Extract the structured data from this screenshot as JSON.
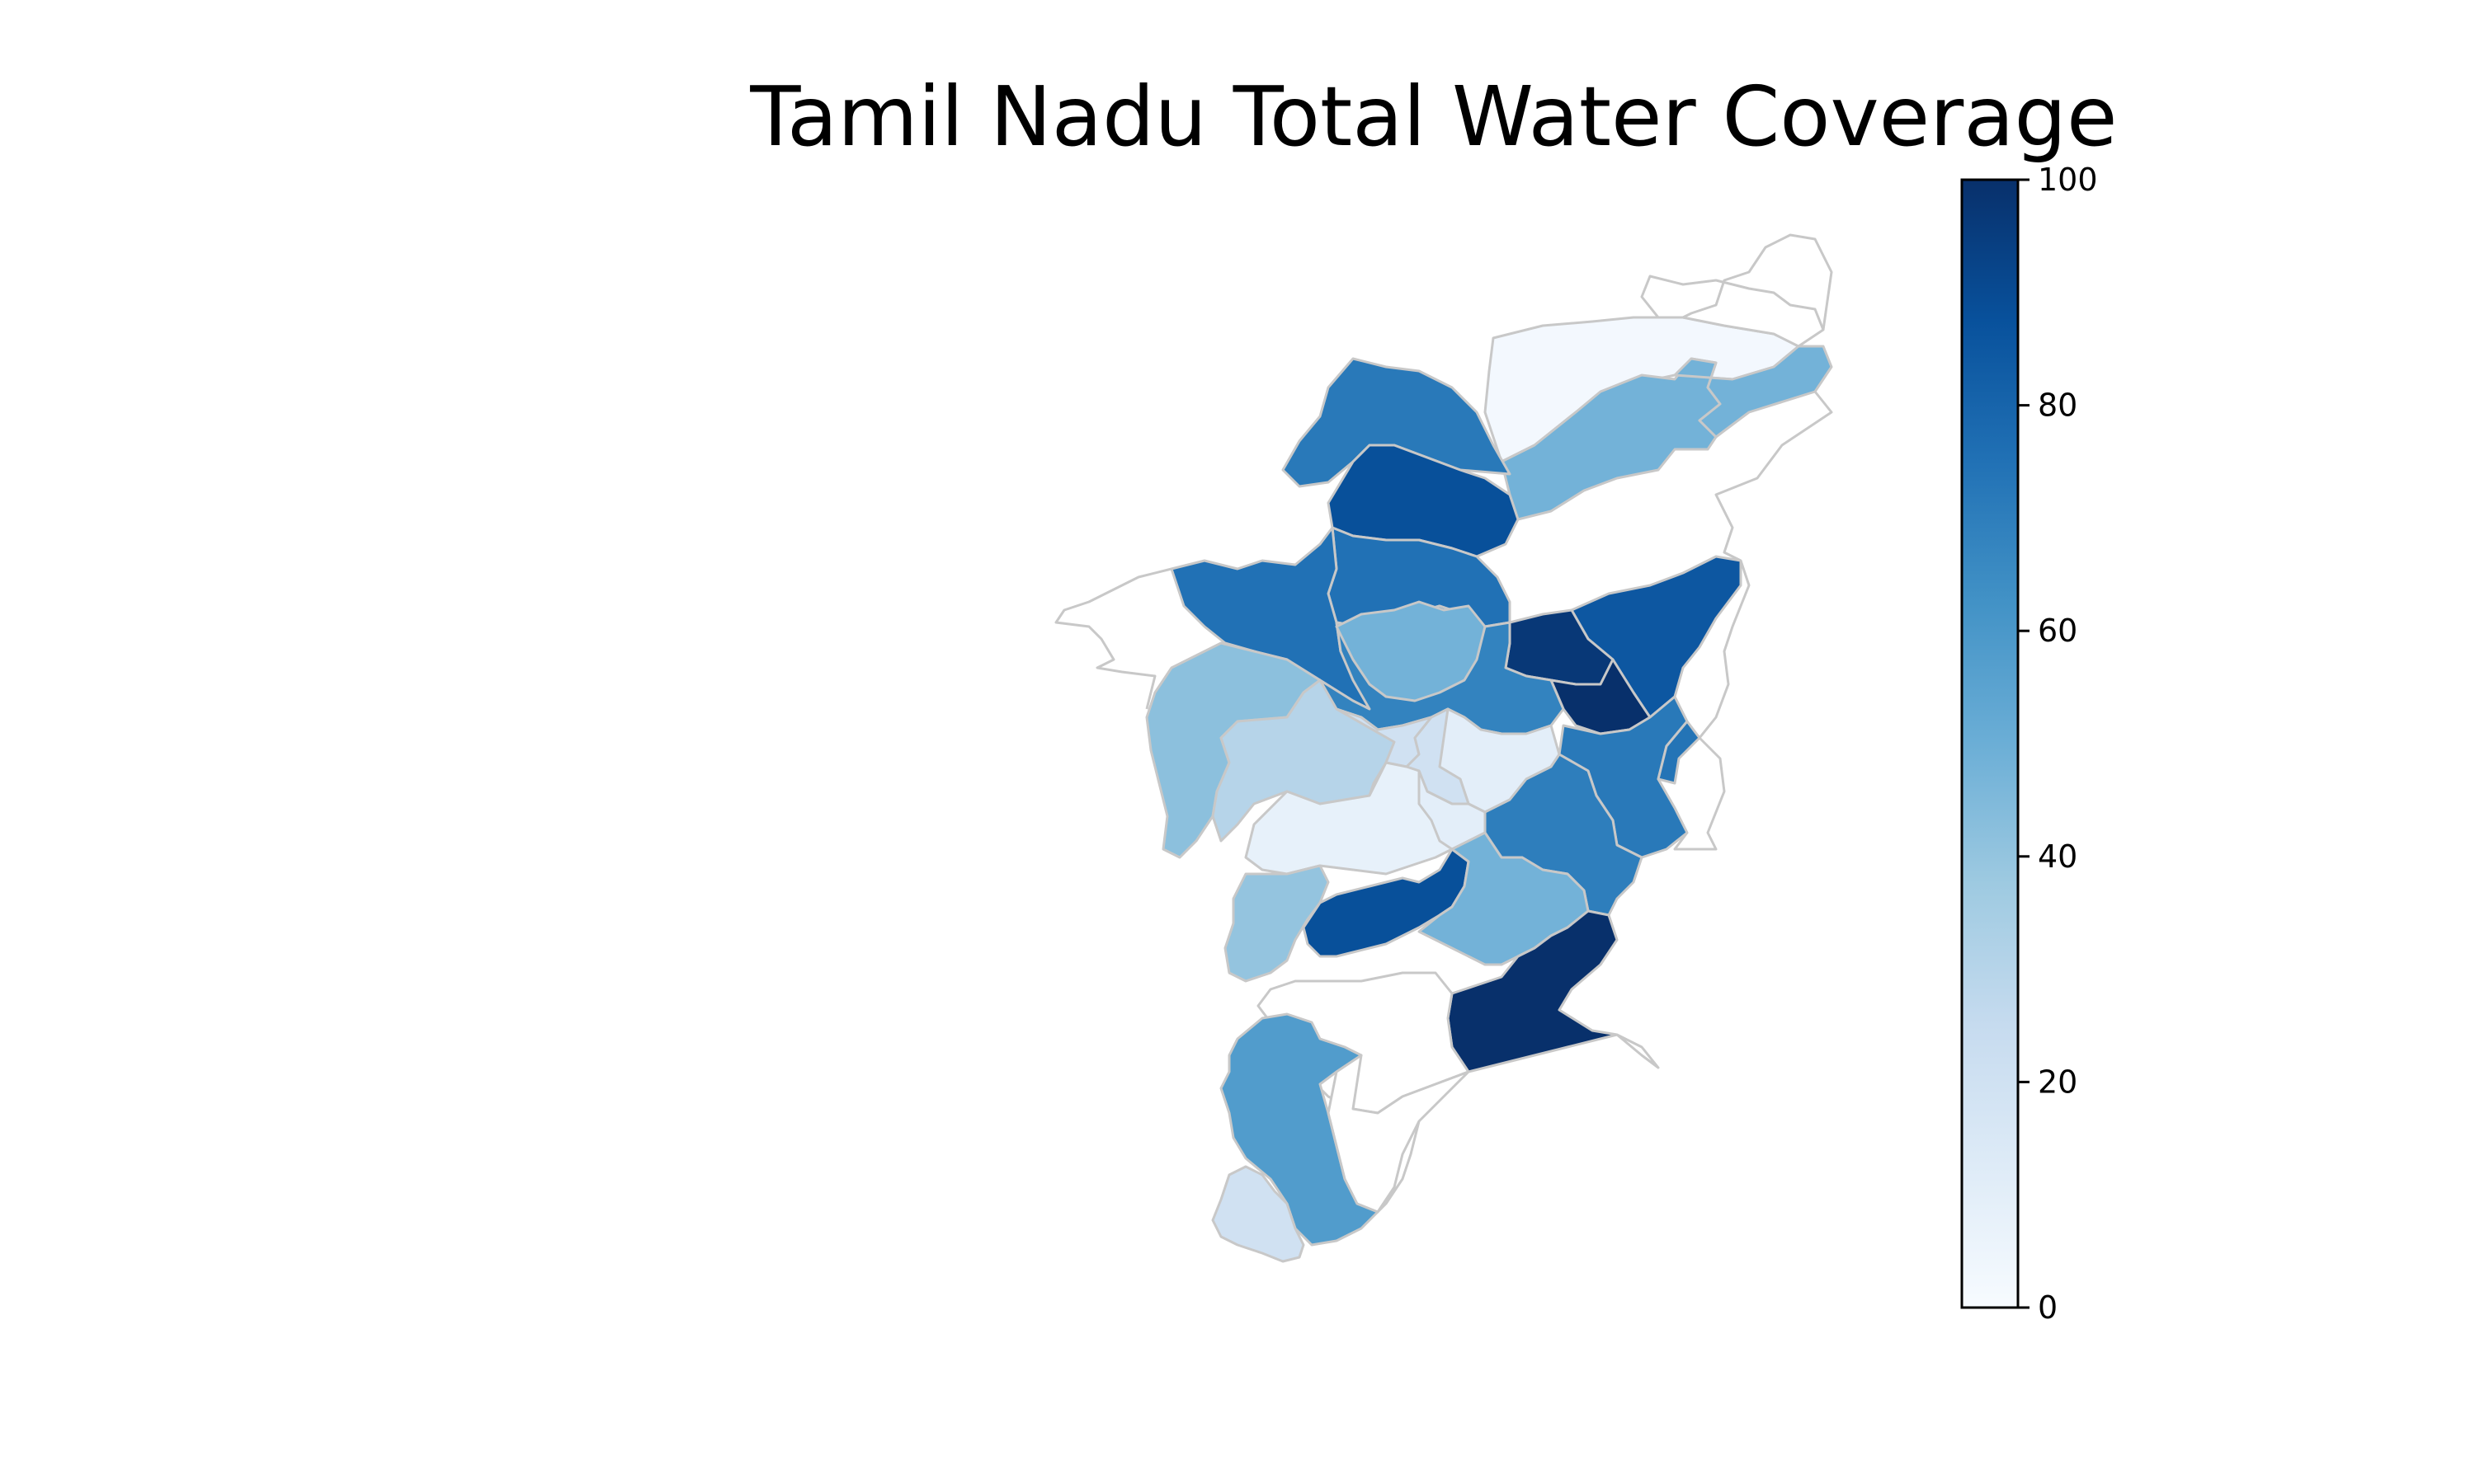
{
  "title": "Tamil Nadu Total Water Coverage",
  "colorbar": {
    "min": 0,
    "max": 100,
    "ticks": [
      "0",
      "20",
      "40",
      "60",
      "80",
      "100"
    ],
    "colormap": "Blues",
    "stops": [
      "#f7fbff",
      "#deebf7",
      "#c6dbef",
      "#9ecae1",
      "#6baed6",
      "#4292c6",
      "#2171b5",
      "#08519c",
      "#08306b"
    ]
  },
  "no_data_color": "#ffffff",
  "border_color": "#c8c8c8",
  "chart_data": {
    "type": "heatmap",
    "title": "Tamil Nadu Total Water Coverage",
    "value_range": [
      0,
      100
    ],
    "regions": [
      {
        "id": "r01",
        "value": 2
      },
      {
        "id": "r02",
        "value": 48
      },
      {
        "id": "r03",
        "value": 48
      },
      {
        "id": "r04",
        "value": null
      },
      {
        "id": "r05",
        "value": 85
      },
      {
        "id": "r06",
        "value": 97
      },
      {
        "id": "r07",
        "value": 100
      },
      {
        "id": "r08",
        "value": 72
      },
      {
        "id": "r09",
        "value": 72
      },
      {
        "id": "r10",
        "value": 88
      },
      {
        "id": "r11",
        "value": 75
      },
      {
        "id": "r12",
        "value": 75
      },
      {
        "id": "r13",
        "value": 68
      },
      {
        "id": "r14",
        "value": 48
      },
      {
        "id": "r15",
        "value": 10
      },
      {
        "id": "r16",
        "value": 42
      },
      {
        "id": "r17",
        "value": 30
      },
      {
        "id": "r18",
        "value": 20
      },
      {
        "id": "r19",
        "value": 20
      },
      {
        "id": "r20",
        "value": 70
      },
      {
        "id": "r21",
        "value": 74
      },
      {
        "id": "r22",
        "value": 8
      },
      {
        "id": "r23",
        "value": 10
      },
      {
        "id": "r24",
        "value": 40
      },
      {
        "id": "r25",
        "value": 88
      },
      {
        "id": "r26",
        "value": 48
      },
      {
        "id": "r27",
        "value": 100
      },
      {
        "id": "r28",
        "value": null
      },
      {
        "id": "r29",
        "value": 58
      },
      {
        "id": "r30",
        "value": 20
      },
      {
        "id": "r31",
        "value": null
      }
    ]
  }
}
